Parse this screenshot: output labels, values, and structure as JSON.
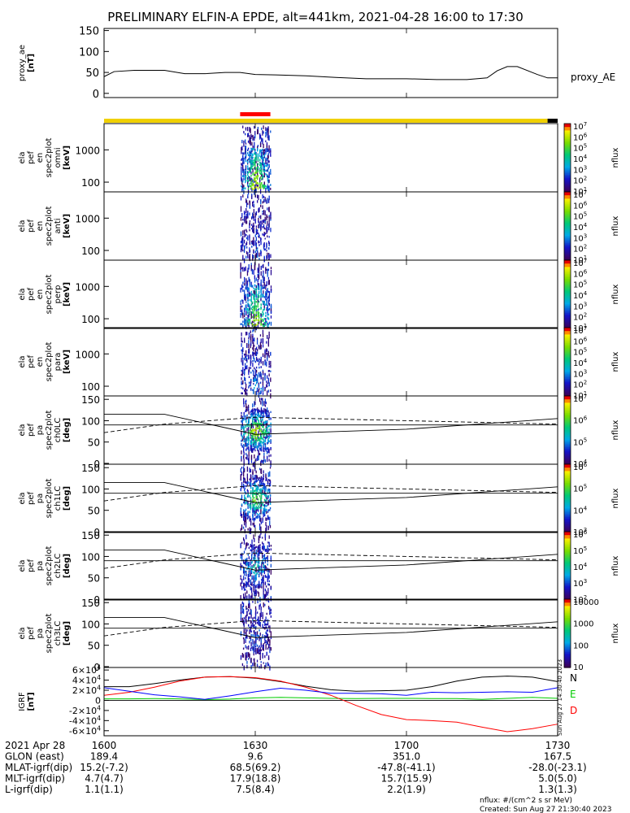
{
  "title": "PRELIMINARY ELFIN-A EPDE, alt=441km, 2021-04-28 16:00 to 17:30",
  "time_ticks": [
    "1600",
    "1630",
    "1700",
    "1730"
  ],
  "colorbar_unit_label": "nflux",
  "footer": {
    "units_note": "nflux: #/(cm^2 s sr MeV)",
    "created": "Created: Sun Aug 27 21:30:40 2023",
    "side_stamp": "Sun Aug 27 14:30:40 2023"
  },
  "ephemeris": {
    "rows": [
      {
        "label": "2021 Apr 28",
        "values": [
          "1600",
          "1630",
          "1700",
          "1730"
        ]
      },
      {
        "label": "GLON (east)",
        "values": [
          "189.4",
          "9.6",
          "351.0",
          "167.5"
        ]
      },
      {
        "label": "MLAT-igrf(dip)",
        "values": [
          "15.2(-7.2)",
          "68.5(69.2)",
          "-47.8(-41.1)",
          "-28.0(-23.1)"
        ]
      },
      {
        "label": "MLT-igrf(dip)",
        "values": [
          "4.7(4.7)",
          "17.9(18.8)",
          "15.7(15.9)",
          "5.0(5.0)"
        ]
      },
      {
        "label": "L-igrf(dip)",
        "values": [
          "1.1(1.1)",
          "7.5(8.4)",
          "2.2(1.9)",
          "1.3(1.3)"
        ]
      }
    ]
  },
  "chart_data": [
    {
      "id": "proxy_ae",
      "type": "line",
      "ylabel": [
        "proxy_ae",
        "[nT]"
      ],
      "legend": "proxy_AE",
      "yticks": [
        "0",
        "50",
        "100",
        "150"
      ],
      "ylim": [
        -10,
        155
      ],
      "x": [
        1600,
        1602,
        1606,
        1612,
        1616,
        1620,
        1624,
        1627,
        1630,
        1634,
        1640,
        1646,
        1652,
        1657,
        1700,
        1706,
        1712,
        1716,
        1718,
        1720,
        1722,
        1726,
        1728,
        1730
      ],
      "y": [
        40,
        52,
        55,
        55,
        47,
        47,
        50,
        50,
        45,
        44,
        42,
        38,
        35,
        35,
        35,
        33,
        33,
        37,
        54,
        64,
        64,
        45,
        37,
        37
      ]
    },
    {
      "id": "status_bar",
      "type": "table",
      "segments": [
        {
          "start": 1600,
          "end": 1728,
          "color": "#f0d000"
        },
        {
          "start": 1728,
          "end": 1730,
          "color": "#000000"
        }
      ],
      "science_zone": {
        "start": 1627,
        "end": 1633,
        "color": "#ff0000"
      }
    },
    {
      "id": "en_omni",
      "type": "heatmap",
      "ylabel": [
        "ela",
        "pef",
        "en",
        "spec2plot",
        "omni",
        "[keV]"
      ],
      "yscale": "log",
      "yticks": [
        "100",
        "1000"
      ],
      "colorbar_ticks": [
        "10^1",
        "10^2",
        "10^3",
        "10^4",
        "10^5",
        "10^6",
        "10^7"
      ],
      "intensity": 1.0
    },
    {
      "id": "en_anti",
      "type": "heatmap",
      "ylabel": [
        "ela",
        "pef",
        "en",
        "spec2plot",
        "anti",
        "[keV]"
      ],
      "yscale": "log",
      "yticks": [
        "100",
        "1000"
      ],
      "colorbar_ticks": [
        "10^1",
        "10^2",
        "10^3",
        "10^4",
        "10^5",
        "10^6",
        "10^7"
      ],
      "intensity": 0.25
    },
    {
      "id": "en_perp",
      "type": "heatmap",
      "ylabel": [
        "ela",
        "pef",
        "en",
        "spec2plot",
        "perp",
        "[keV]"
      ],
      "yscale": "log",
      "yticks": [
        "100",
        "1000"
      ],
      "colorbar_ticks": [
        "10^1",
        "10^2",
        "10^3",
        "10^4",
        "10^5",
        "10^6",
        "10^7"
      ],
      "intensity": 0.95
    },
    {
      "id": "en_para",
      "type": "heatmap",
      "ylabel": [
        "ela",
        "pef",
        "en",
        "spec2plot",
        "para",
        "[keV]"
      ],
      "yscale": "log",
      "yticks": [
        "100",
        "1000"
      ],
      "colorbar_ticks": [
        "10^1",
        "10^2",
        "10^3",
        "10^4",
        "10^5",
        "10^6",
        "10^7"
      ],
      "intensity": 0.35
    },
    {
      "id": "pa_ch0LC",
      "type": "heatmap",
      "ylabel": [
        "ela",
        "pef",
        "pa",
        "spec2plot",
        "ch0LC",
        "[deg]"
      ],
      "yticks": [
        "0",
        "50",
        "100",
        "150"
      ],
      "colorbar_ticks": [
        "10^4",
        "10^5",
        "10^6",
        "10^7"
      ],
      "intensity": 0.9
    },
    {
      "id": "pa_ch1LC",
      "type": "heatmap",
      "ylabel": [
        "ela",
        "pef",
        "pa",
        "spec2plot",
        "ch1LC",
        "[deg]"
      ],
      "yticks": [
        "0",
        "50",
        "100",
        "150"
      ],
      "colorbar_ticks": [
        "10^3",
        "10^4",
        "10^5",
        "10^6"
      ],
      "intensity": 0.75
    },
    {
      "id": "pa_ch2LC",
      "type": "heatmap",
      "ylabel": [
        "ela",
        "pef",
        "pa",
        "spec2plot",
        "ch2LC",
        "[deg]"
      ],
      "yticks": [
        "0",
        "50",
        "100",
        "150"
      ],
      "colorbar_ticks": [
        "10^2",
        "10^3",
        "10^4",
        "10^5",
        "10^6"
      ],
      "intensity": 0.5
    },
    {
      "id": "pa_ch3LC",
      "type": "heatmap",
      "ylabel": [
        "ela",
        "pef",
        "pa",
        "spec2plot",
        "ch3LC",
        "[deg]"
      ],
      "yticks": [
        "0",
        "50",
        "100",
        "150"
      ],
      "colorbar_ticks": [
        "10",
        "100",
        "1000",
        "10000"
      ],
      "intensity": 0.25
    },
    {
      "id": "igrf",
      "type": "line",
      "ylabel": [
        "IGRF",
        "[nT]"
      ],
      "yticks": [
        "-6×10^4",
        "-4×10^4",
        "-2×10^4",
        "0",
        "2×10^4",
        "4×10^4",
        "6×10^4"
      ],
      "ylim": [
        -70000,
        65000
      ],
      "x": [
        1600,
        1605,
        1610,
        1615,
        1620,
        1625,
        1630,
        1635,
        1640,
        1645,
        1650,
        1655,
        1700,
        1705,
        1710,
        1715,
        1720,
        1725,
        1730
      ],
      "series": [
        {
          "name": "N",
          "color": "#000000",
          "y": [
            27000,
            27000,
            33000,
            40000,
            46000,
            47000,
            44000,
            37000,
            28000,
            21000,
            18000,
            19000,
            20000,
            27000,
            38000,
            46000,
            48000,
            46000,
            37000
          ]
        },
        {
          "name": "E",
          "color": "#00cc00",
          "y": [
            3000,
            3000,
            3500,
            3000,
            1500,
            2500,
            5000,
            6000,
            5000,
            4000,
            3500,
            4000,
            4000,
            3500,
            3500,
            2000,
            4000,
            6000,
            4000
          ]
        },
        {
          "name": "D",
          "color": "#ff0000",
          "y": [
            10000,
            16000,
            26000,
            38000,
            46000,
            47000,
            45000,
            38000,
            26000,
            10000,
            -10000,
            -28000,
            -38000,
            -40000,
            -43000,
            -53000,
            -62000,
            -56000,
            -47000
          ]
        },
        {
          "name": "",
          "color": "#0000ff",
          "y": [
            25000,
            18000,
            11000,
            7000,
            2000,
            9000,
            17000,
            24000,
            20000,
            14000,
            14000,
            13000,
            10000,
            16000,
            15000,
            16000,
            17000,
            16000,
            25000
          ]
        }
      ]
    }
  ]
}
